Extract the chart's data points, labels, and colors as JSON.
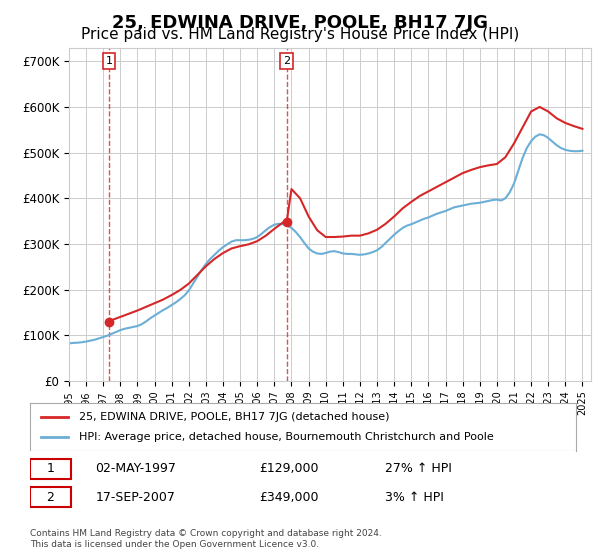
{
  "title": "25, EDWINA DRIVE, POOLE, BH17 7JG",
  "subtitle": "Price paid vs. HM Land Registry's House Price Index (HPI)",
  "title_fontsize": 13,
  "subtitle_fontsize": 11,
  "ylabel_ticks": [
    "£0",
    "£100K",
    "£200K",
    "£300K",
    "£400K",
    "£500K",
    "£600K",
    "£700K"
  ],
  "ytick_vals": [
    0,
    100000,
    200000,
    300000,
    400000,
    500000,
    600000,
    700000
  ],
  "ylim": [
    0,
    730000
  ],
  "xlim_start": 1995.0,
  "xlim_end": 2025.5,
  "hpi_color": "#6baed6",
  "price_color": "#d62728",
  "sale_marker_color": "#d62728",
  "dashed_line_color": "#d62728",
  "grid_color": "#cccccc",
  "background_color": "#ffffff",
  "plot_bg_color": "#ffffff",
  "legend_label_price": "25, EDWINA DRIVE, POOLE, BH17 7JG (detached house)",
  "legend_label_hpi": "HPI: Average price, detached house, Bournemouth Christchurch and Poole",
  "sale1_date": 1997.33,
  "sale1_price": 129000,
  "sale1_label": "1",
  "sale1_text": "02-MAY-1997",
  "sale1_amount": "£129,000",
  "sale1_hpi": "27% ↑ HPI",
  "sale2_date": 2007.72,
  "sale2_price": 349000,
  "sale2_label": "2",
  "sale2_text": "17-SEP-2007",
  "sale2_amount": "£349,000",
  "sale2_hpi": "3% ↑ HPI",
  "footer": "Contains HM Land Registry data © Crown copyright and database right 2024.\nThis data is licensed under the Open Government Licence v3.0.",
  "hpi_data_x": [
    1995.0,
    1995.25,
    1995.5,
    1995.75,
    1996.0,
    1996.25,
    1996.5,
    1996.75,
    1997.0,
    1997.25,
    1997.5,
    1997.75,
    1998.0,
    1998.25,
    1998.5,
    1998.75,
    1999.0,
    1999.25,
    1999.5,
    1999.75,
    2000.0,
    2000.25,
    2000.5,
    2000.75,
    2001.0,
    2001.25,
    2001.5,
    2001.75,
    2002.0,
    2002.25,
    2002.5,
    2002.75,
    2003.0,
    2003.25,
    2003.5,
    2003.75,
    2004.0,
    2004.25,
    2004.5,
    2004.75,
    2005.0,
    2005.25,
    2005.5,
    2005.75,
    2006.0,
    2006.25,
    2006.5,
    2006.75,
    2007.0,
    2007.25,
    2007.5,
    2007.75,
    2008.0,
    2008.25,
    2008.5,
    2008.75,
    2009.0,
    2009.25,
    2009.5,
    2009.75,
    2010.0,
    2010.25,
    2010.5,
    2010.75,
    2011.0,
    2011.25,
    2011.5,
    2011.75,
    2012.0,
    2012.25,
    2012.5,
    2012.75,
    2013.0,
    2013.25,
    2013.5,
    2013.75,
    2014.0,
    2014.25,
    2014.5,
    2014.75,
    2015.0,
    2015.25,
    2015.5,
    2015.75,
    2016.0,
    2016.25,
    2016.5,
    2016.75,
    2017.0,
    2017.25,
    2017.5,
    2017.75,
    2018.0,
    2018.25,
    2018.5,
    2018.75,
    2019.0,
    2019.25,
    2019.5,
    2019.75,
    2020.0,
    2020.25,
    2020.5,
    2020.75,
    2021.0,
    2021.25,
    2021.5,
    2021.75,
    2022.0,
    2022.25,
    2022.5,
    2022.75,
    2023.0,
    2023.25,
    2023.5,
    2023.75,
    2024.0,
    2024.25,
    2024.5,
    2024.75,
    2025.0
  ],
  "hpi_data_y": [
    82000,
    83000,
    83500,
    84500,
    86000,
    88000,
    90000,
    93000,
    96000,
    99000,
    103000,
    107000,
    111000,
    114000,
    116000,
    118000,
    120000,
    124000,
    130000,
    137000,
    143000,
    149000,
    155000,
    160000,
    166000,
    172000,
    179000,
    187000,
    198000,
    213000,
    228000,
    243000,
    256000,
    267000,
    276000,
    285000,
    293000,
    299000,
    305000,
    308000,
    308000,
    308000,
    309000,
    311000,
    315000,
    322000,
    330000,
    337000,
    342000,
    344000,
    343000,
    340000,
    335000,
    326000,
    315000,
    302000,
    290000,
    283000,
    279000,
    278000,
    280000,
    283000,
    284000,
    282000,
    279000,
    278000,
    278000,
    277000,
    276000,
    277000,
    279000,
    282000,
    286000,
    293000,
    302000,
    311000,
    320000,
    328000,
    335000,
    340000,
    343000,
    347000,
    351000,
    355000,
    358000,
    362000,
    366000,
    369000,
    372000,
    376000,
    380000,
    382000,
    384000,
    386000,
    388000,
    389000,
    390000,
    392000,
    394000,
    396000,
    397000,
    395000,
    400000,
    413000,
    432000,
    460000,
    488000,
    510000,
    525000,
    535000,
    540000,
    538000,
    532000,
    524000,
    516000,
    510000,
    506000,
    504000,
    503000,
    503000,
    504000
  ],
  "price_data_x": [
    1997.33,
    1997.5,
    1998.0,
    1998.5,
    1999.0,
    1999.5,
    2000.0,
    2000.5,
    2001.0,
    2001.5,
    2002.0,
    2002.5,
    2003.0,
    2003.5,
    2004.0,
    2004.5,
    2005.0,
    2005.5,
    2006.0,
    2006.5,
    2007.0,
    2007.5,
    2007.72,
    2008.0,
    2008.5,
    2009.0,
    2009.5,
    2010.0,
    2010.5,
    2011.0,
    2011.5,
    2012.0,
    2012.5,
    2013.0,
    2013.5,
    2014.0,
    2014.5,
    2015.0,
    2015.5,
    2016.0,
    2016.5,
    2017.0,
    2017.5,
    2018.0,
    2018.5,
    2019.0,
    2019.5,
    2020.0,
    2020.5,
    2021.0,
    2021.5,
    2022.0,
    2022.5,
    2023.0,
    2023.5,
    2024.0,
    2024.5,
    2025.0
  ],
  "price_data_y": [
    129000,
    133000,
    140000,
    147000,
    154000,
    162000,
    170000,
    178000,
    188000,
    199000,
    213000,
    232000,
    251000,
    267000,
    280000,
    290000,
    295000,
    299000,
    306000,
    318000,
    333000,
    347000,
    349000,
    420000,
    400000,
    360000,
    330000,
    315000,
    315000,
    316000,
    318000,
    318000,
    323000,
    331000,
    344000,
    360000,
    378000,
    392000,
    405000,
    415000,
    425000,
    435000,
    445000,
    455000,
    462000,
    468000,
    472000,
    475000,
    490000,
    520000,
    555000,
    590000,
    600000,
    590000,
    575000,
    565000,
    558000,
    552000
  ]
}
